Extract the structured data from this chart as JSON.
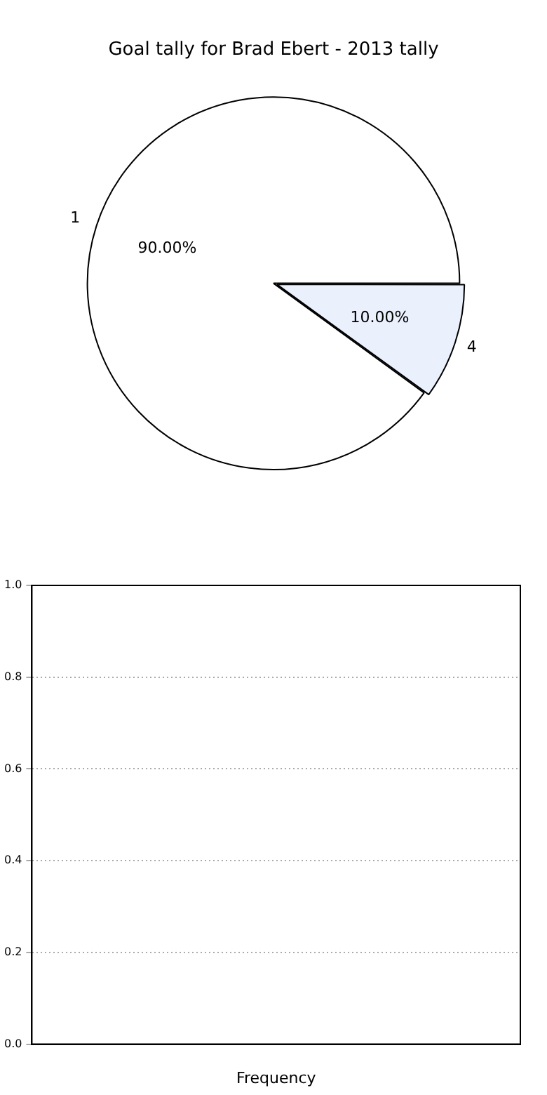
{
  "chart_data": [
    {
      "type": "pie",
      "title": "Goal tally for Brad Ebert - 2013 tally",
      "categories": [
        "1",
        "4"
      ],
      "values": [
        90,
        10
      ],
      "colors": [
        "#ffffff",
        "#ebf0fd"
      ],
      "value_labels": [
        "90.00%",
        "10.00%"
      ]
    },
    {
      "type": "bar",
      "xlabel": "Frequency",
      "categories": [
        null
      ],
      "values": [
        null
      ],
      "ylim": [
        0,
        1
      ],
      "yticks": [
        {
          "value": 0,
          "label": "0.0"
        },
        {
          "value": 0.2,
          "label": "0.2"
        },
        {
          "value": 0.4,
          "label": "0.4"
        },
        {
          "value": 0.6,
          "label": "0.6"
        },
        {
          "value": 0.8,
          "label": "0.8"
        },
        {
          "value": 1,
          "label": "1.0"
        }
      ],
      "grid": "y"
    }
  ]
}
